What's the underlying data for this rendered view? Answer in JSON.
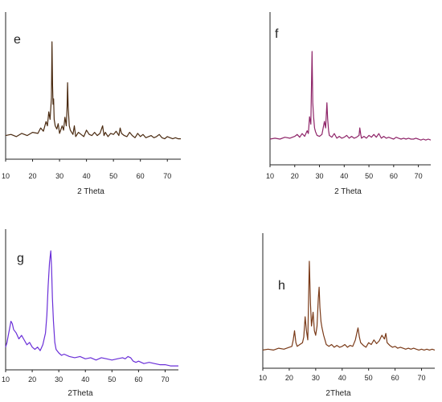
{
  "chart_data": [
    {
      "type": "line",
      "panel": "e",
      "xlabel": "2 Theta",
      "xlim": [
        10,
        75
      ],
      "xticks": [
        "10",
        "20",
        "30",
        "40",
        "50",
        "60",
        "70"
      ],
      "ylim": [
        0,
        1
      ],
      "color": "#4a2a10",
      "series": [
        {
          "x": [
            10,
            12,
            14,
            16,
            18,
            20,
            22,
            23,
            24,
            25,
            25.5,
            26,
            26.5,
            27,
            27.2,
            27.4,
            27.6,
            27.8,
            28,
            28.4,
            29,
            29.5,
            30,
            31,
            31.5,
            32,
            32.5,
            32.8,
            33,
            33.2,
            33.6,
            34,
            35,
            35.5,
            36,
            37,
            38,
            39,
            40,
            41,
            42,
            43,
            44,
            45,
            46,
            46.5,
            47,
            48,
            49,
            50,
            51,
            52,
            52.5,
            53,
            54,
            55,
            56,
            57,
            58,
            59,
            60,
            61,
            62,
            63,
            64,
            65,
            66,
            67,
            68,
            69,
            70,
            71,
            72,
            73,
            74,
            75
          ],
          "values": [
            0.13,
            0.14,
            0.12,
            0.15,
            0.13,
            0.16,
            0.15,
            0.2,
            0.17,
            0.26,
            0.22,
            0.35,
            0.28,
            0.48,
            1.0,
            0.6,
            0.42,
            0.47,
            0.28,
            0.22,
            0.19,
            0.24,
            0.15,
            0.22,
            0.18,
            0.3,
            0.22,
            0.4,
            0.62,
            0.4,
            0.22,
            0.18,
            0.14,
            0.22,
            0.12,
            0.16,
            0.14,
            0.12,
            0.18,
            0.14,
            0.13,
            0.16,
            0.13,
            0.15,
            0.22,
            0.13,
            0.16,
            0.12,
            0.15,
            0.14,
            0.17,
            0.13,
            0.2,
            0.15,
            0.13,
            0.12,
            0.16,
            0.13,
            0.11,
            0.15,
            0.12,
            0.14,
            0.11,
            0.12,
            0.13,
            0.11,
            0.12,
            0.14,
            0.11,
            0.1,
            0.12,
            0.11,
            0.1,
            0.11,
            0.1,
            0.1
          ]
        }
      ]
    },
    {
      "type": "line",
      "panel": "f",
      "xlabel": "2 Theta",
      "xlim": [
        10,
        75
      ],
      "xticks": [
        "10",
        "20",
        "30",
        "40",
        "50",
        "60",
        "70"
      ],
      "ylim": [
        0,
        1
      ],
      "color": "#8e2468",
      "series": [
        {
          "x": [
            10,
            12,
            14,
            16,
            18,
            20,
            21,
            22,
            23,
            24,
            25,
            25.5,
            26,
            26.5,
            27,
            27.3,
            27.6,
            28,
            28.4,
            29,
            30,
            31,
            32,
            32.5,
            33,
            33.3,
            33.7,
            34,
            35,
            36,
            37,
            38,
            39,
            40,
            41,
            42,
            43,
            44,
            45,
            46,
            46.3,
            46.7,
            47,
            48,
            49,
            50,
            51,
            52,
            53,
            54,
            55,
            56,
            57,
            58,
            59,
            60,
            61,
            62,
            63,
            64,
            65,
            66,
            67,
            68,
            69,
            70,
            71,
            72,
            73,
            74,
            75
          ],
          "values": [
            0.06,
            0.07,
            0.06,
            0.08,
            0.07,
            0.09,
            0.11,
            0.08,
            0.12,
            0.09,
            0.15,
            0.12,
            0.3,
            0.22,
            1.0,
            0.45,
            0.3,
            0.18,
            0.14,
            0.1,
            0.09,
            0.11,
            0.25,
            0.18,
            0.45,
            0.28,
            0.15,
            0.1,
            0.08,
            0.12,
            0.07,
            0.09,
            0.07,
            0.08,
            0.1,
            0.07,
            0.09,
            0.07,
            0.08,
            0.1,
            0.18,
            0.11,
            0.07,
            0.09,
            0.07,
            0.1,
            0.08,
            0.11,
            0.08,
            0.12,
            0.07,
            0.09,
            0.07,
            0.08,
            0.07,
            0.06,
            0.08,
            0.07,
            0.06,
            0.07,
            0.06,
            0.07,
            0.06,
            0.06,
            0.07,
            0.06,
            0.05,
            0.06,
            0.05,
            0.06,
            0.05
          ]
        }
      ]
    },
    {
      "type": "line",
      "panel": "g",
      "xlabel": "2Theta",
      "xlim": [
        10,
        75
      ],
      "xticks": [
        "10",
        "20",
        "30",
        "40",
        "50",
        "60",
        "70"
      ],
      "ylim": [
        0,
        1
      ],
      "color": "#6a2fd8",
      "series": [
        {
          "x": [
            10,
            10.5,
            11,
            11.5,
            12,
            12.5,
            13,
            14,
            15,
            16,
            17,
            18,
            19,
            20,
            21,
            22,
            23,
            24,
            25,
            25.5,
            26,
            26.5,
            27,
            27.3,
            27.6,
            28,
            28.5,
            29,
            30,
            31,
            32,
            34,
            36,
            38,
            40,
            42,
            44,
            46,
            48,
            50,
            52,
            54,
            55,
            56,
            57,
            58,
            59,
            60,
            62,
            64,
            66,
            68,
            70,
            72,
            74,
            75
          ],
          "values": [
            0.18,
            0.22,
            0.28,
            0.34,
            0.4,
            0.38,
            0.33,
            0.3,
            0.25,
            0.28,
            0.24,
            0.2,
            0.22,
            0.18,
            0.16,
            0.18,
            0.15,
            0.2,
            0.3,
            0.45,
            0.7,
            0.9,
            1.0,
            0.85,
            0.6,
            0.4,
            0.22,
            0.16,
            0.13,
            0.11,
            0.12,
            0.1,
            0.09,
            0.1,
            0.08,
            0.09,
            0.07,
            0.09,
            0.08,
            0.07,
            0.08,
            0.09,
            0.08,
            0.1,
            0.09,
            0.06,
            0.05,
            0.06,
            0.04,
            0.05,
            0.04,
            0.03,
            0.03,
            0.02,
            0.02,
            0.02
          ]
        }
      ]
    },
    {
      "type": "line",
      "panel": "h",
      "xlabel": "2Theta",
      "xlim": [
        10,
        75
      ],
      "xticks": [
        "10",
        "20",
        "30",
        "40",
        "50",
        "60",
        "70"
      ],
      "ylim": [
        0,
        1
      ],
      "color": "#7a3a18",
      "series": [
        {
          "x": [
            10,
            12,
            14,
            16,
            18,
            20,
            21,
            21.5,
            22,
            22.5,
            23,
            24,
            25,
            25.5,
            26,
            26.5,
            27,
            27.3,
            27.6,
            28,
            28.4,
            29,
            29.5,
            30,
            30.5,
            31,
            31.3,
            31.6,
            32,
            32.4,
            33,
            33.5,
            34,
            35,
            36,
            37,
            38,
            39,
            40,
            41,
            42,
            43,
            44,
            45,
            45.5,
            46,
            46.5,
            47,
            48,
            49,
            50,
            51,
            52,
            53,
            54,
            55,
            56,
            56.5,
            57,
            58,
            59,
            60,
            61,
            62,
            63,
            64,
            65,
            66,
            67,
            68,
            69,
            70,
            71,
            72,
            73,
            74,
            75
          ],
          "values": [
            0.04,
            0.05,
            0.04,
            0.06,
            0.05,
            0.07,
            0.08,
            0.15,
            0.25,
            0.12,
            0.08,
            0.1,
            0.12,
            0.18,
            0.4,
            0.25,
            0.15,
            0.6,
            1.0,
            0.55,
            0.3,
            0.45,
            0.25,
            0.2,
            0.3,
            0.6,
            0.72,
            0.5,
            0.35,
            0.28,
            0.2,
            0.15,
            0.1,
            0.08,
            0.1,
            0.07,
            0.09,
            0.07,
            0.08,
            0.1,
            0.07,
            0.09,
            0.08,
            0.15,
            0.22,
            0.28,
            0.18,
            0.12,
            0.09,
            0.07,
            0.12,
            0.1,
            0.15,
            0.11,
            0.14,
            0.2,
            0.16,
            0.22,
            0.12,
            0.09,
            0.07,
            0.08,
            0.06,
            0.07,
            0.06,
            0.05,
            0.06,
            0.05,
            0.06,
            0.05,
            0.04,
            0.05,
            0.04,
            0.05,
            0.04,
            0.05,
            0.04
          ]
        }
      ]
    }
  ]
}
